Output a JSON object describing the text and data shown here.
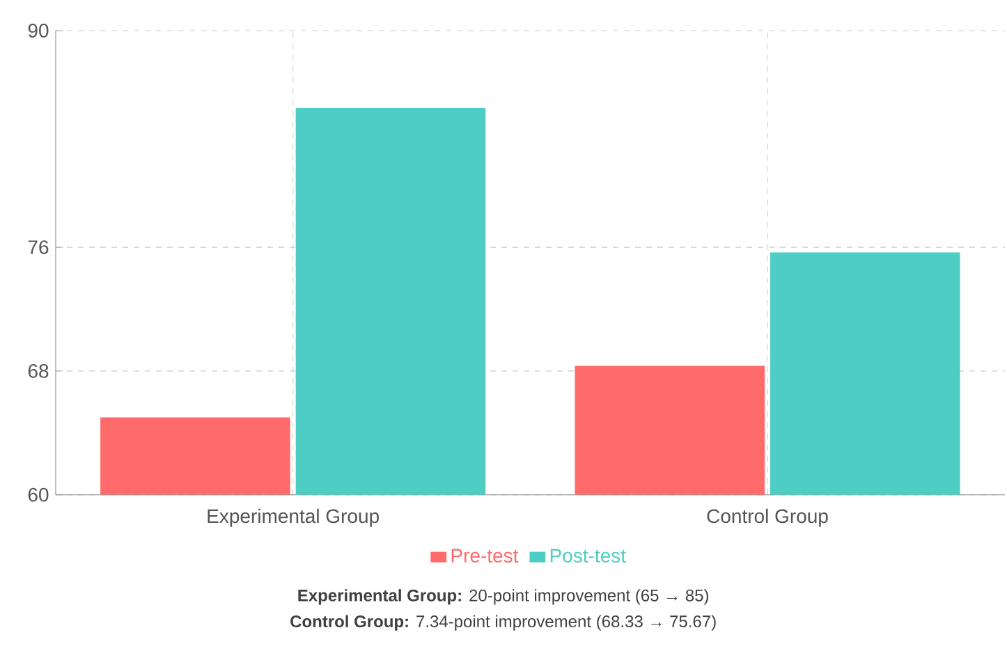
{
  "chart_data": {
    "type": "bar",
    "categories": [
      "Experimental Group",
      "Control Group"
    ],
    "series": [
      {
        "name": "Pre-test",
        "color": "#ff6b6b",
        "values": [
          65,
          68.33
        ]
      },
      {
        "name": "Post-test",
        "color": "#4ecdc4",
        "values": [
          85,
          75.67
        ]
      }
    ],
    "ylim": [
      60,
      90
    ],
    "yticks": [
      60,
      68,
      76,
      90
    ],
    "grid": true,
    "legend": "bottom",
    "annotations": [
      "**Experimental Group:** 20-point improvement (65 → 85)",
      "**Control Group:** 7.34-point improvement (68.33 → 75.67)"
    ]
  }
}
